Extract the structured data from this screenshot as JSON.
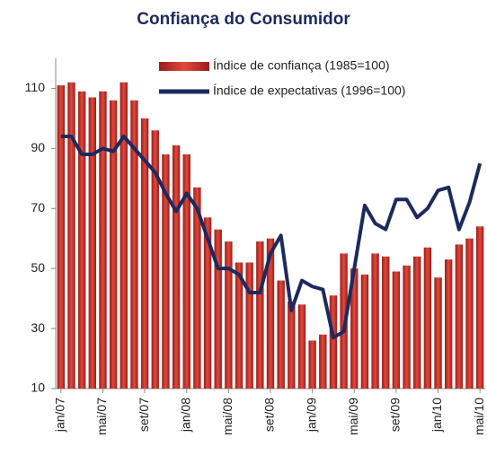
{
  "chart_data": {
    "type": "bar",
    "title": "Confiança do Consumidor",
    "categories": [
      "jan/07",
      null,
      null,
      null,
      "mai/07",
      null,
      null,
      null,
      "set/07",
      null,
      null,
      null,
      "jan/08",
      null,
      null,
      null,
      "mai/08",
      null,
      null,
      null,
      "set/08",
      null,
      null,
      null,
      "jan/09",
      null,
      null,
      null,
      "mai/09",
      null,
      null,
      null,
      "set/09",
      null,
      null,
      null,
      "jan/10",
      null,
      null,
      null,
      "mai/10"
    ],
    "series": [
      {
        "name": "Índice de confiança (1985=100)",
        "type": "bar",
        "color": "#9b1c1c",
        "values": [
          111,
          112,
          109,
          107,
          109,
          106,
          112,
          106,
          100,
          96,
          88,
          91,
          88,
          77,
          67,
          63,
          59,
          52,
          52,
          59,
          60,
          46,
          39,
          38,
          26,
          28,
          41,
          55,
          50,
          48,
          55,
          54,
          49,
          51,
          54,
          57,
          47,
          53,
          58,
          60,
          64
        ]
      },
      {
        "name": "Índice de expectativas (1996=100)",
        "type": "line",
        "color": "#1c2a5e",
        "values": [
          94,
          94,
          88,
          88,
          90,
          89,
          94,
          90,
          86,
          82,
          75,
          69,
          75,
          70,
          60,
          50,
          50,
          48,
          42,
          42,
          55,
          61,
          36,
          46,
          44,
          43,
          27,
          29,
          50,
          71,
          65,
          63,
          73,
          73,
          67,
          70,
          76,
          77,
          63,
          72,
          85
        ]
      }
    ],
    "ylim": [
      10,
      120
    ],
    "yticks": [
      10,
      30,
      50,
      70,
      90,
      110
    ],
    "legend": "top"
  }
}
